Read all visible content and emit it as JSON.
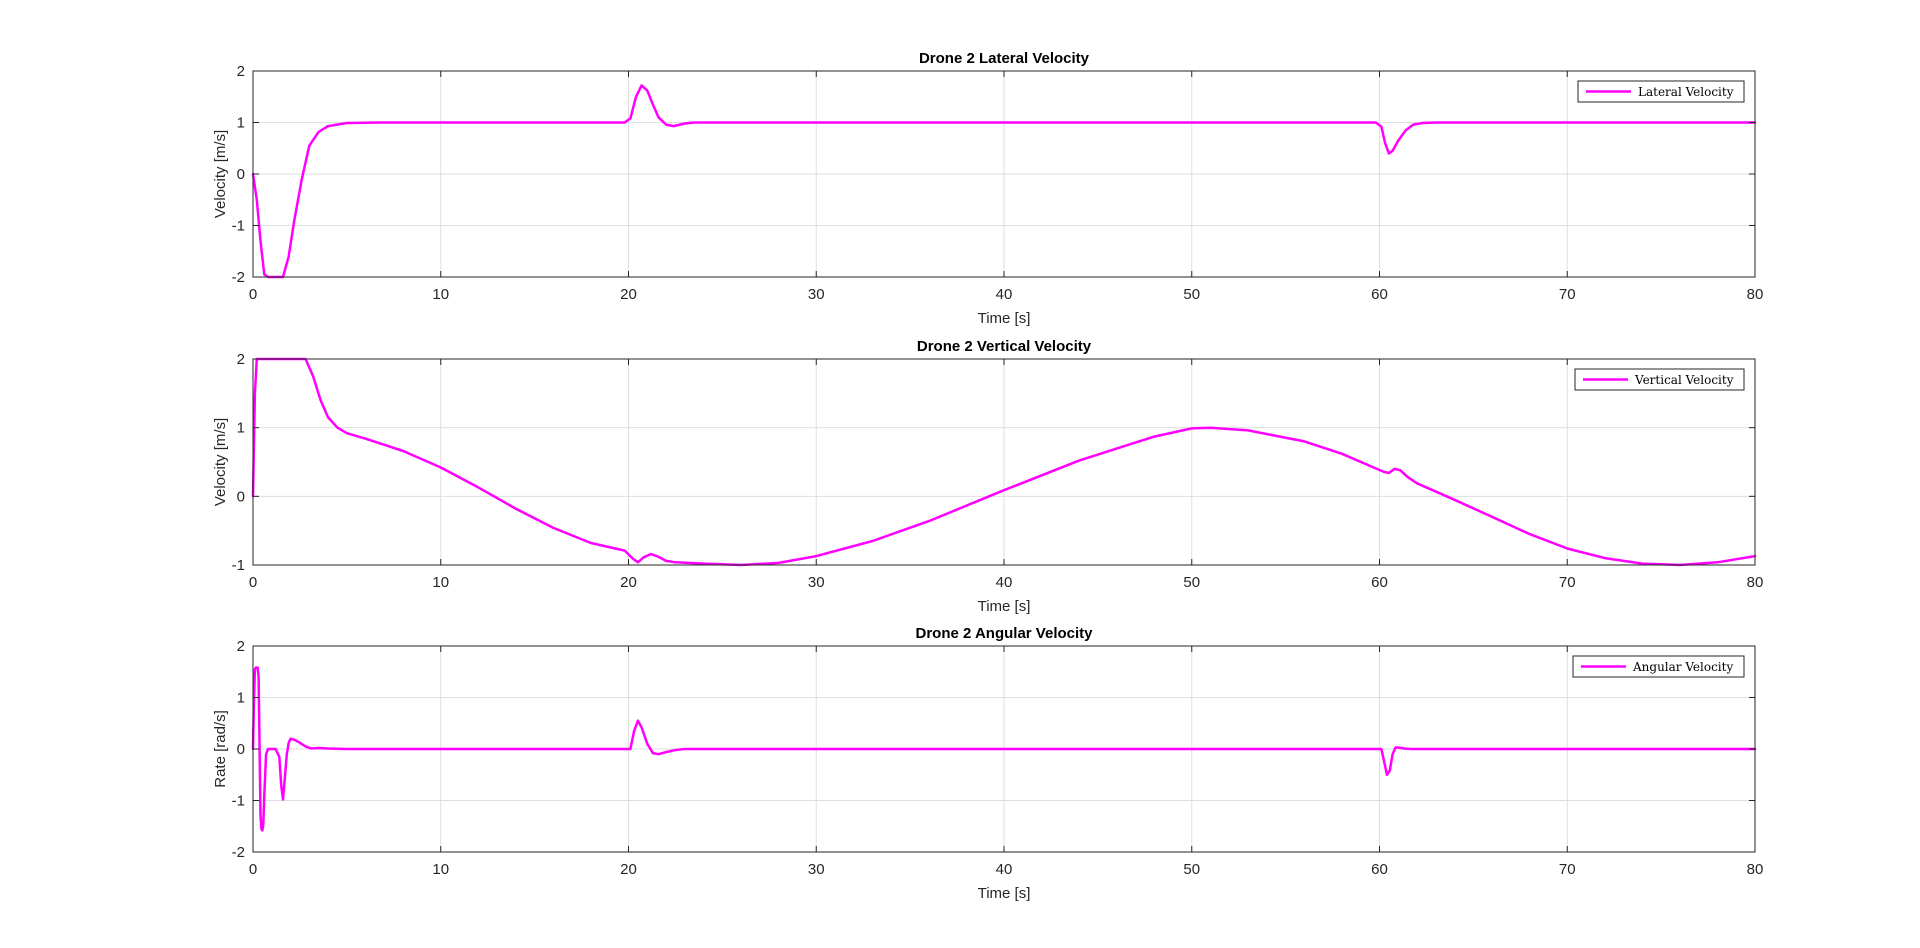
{
  "colors": {
    "series": "#ff00ff",
    "axes": "#262626",
    "grid": "#dfdfdf",
    "background": "#ffffff"
  },
  "chart_data": [
    {
      "type": "line",
      "title": "Drone 2 Lateral Velocity",
      "xlabel": "Time [s]",
      "ylabel": "Velocity [m/s]",
      "xlim": [
        0,
        80
      ],
      "ylim": [
        -2,
        2
      ],
      "xticks": [
        0,
        10,
        20,
        30,
        40,
        50,
        60,
        70,
        80
      ],
      "yticks": [
        -2,
        -1,
        0,
        1,
        2
      ],
      "grid": true,
      "legend_position": "top-right",
      "series": [
        {
          "name": "Lateral Velocity",
          "color": "#ff00ff",
          "x": [
            0,
            0.2,
            0.4,
            0.6,
            0.8,
            1.0,
            1.3,
            1.6,
            1.9,
            2.2,
            2.6,
            3.0,
            3.5,
            4.0,
            5.0,
            7.0,
            10,
            15,
            19.8,
            20.1,
            20.4,
            20.7,
            21.0,
            21.3,
            21.6,
            22.0,
            22.4,
            23.0,
            23.5,
            24.0,
            30,
            40,
            50,
            59.8,
            60.1,
            60.3,
            60.5,
            60.7,
            61.0,
            61.4,
            61.8,
            62.3,
            63.0,
            64.0,
            70,
            80
          ],
          "y": [
            0,
            -0.5,
            -1.3,
            -1.95,
            -2,
            -2,
            -2,
            -2,
            -1.6,
            -0.9,
            -0.1,
            0.55,
            0.82,
            0.93,
            0.99,
            1.0,
            1.0,
            1.0,
            1.0,
            1.08,
            1.5,
            1.72,
            1.62,
            1.35,
            1.1,
            0.96,
            0.93,
            0.98,
            1.0,
            1.0,
            1.0,
            1.0,
            1.0,
            1.0,
            0.92,
            0.6,
            0.4,
            0.45,
            0.65,
            0.85,
            0.96,
            0.99,
            1.0,
            1.0,
            1.0,
            1.0
          ]
        }
      ]
    },
    {
      "type": "line",
      "title": "Drone 2 Vertical Velocity",
      "xlabel": "Time [s]",
      "ylabel": "Velocity [m/s]",
      "xlim": [
        0,
        80
      ],
      "ylim": [
        -1,
        2
      ],
      "xticks": [
        0,
        10,
        20,
        30,
        40,
        50,
        60,
        70,
        80
      ],
      "yticks": [
        -1,
        0,
        1,
        2
      ],
      "grid": true,
      "legend_position": "top-right",
      "series": [
        {
          "name": "Vertical Velocity",
          "color": "#ff00ff",
          "x": [
            0,
            0.1,
            0.2,
            0.3,
            1.0,
            2.0,
            2.8,
            3.2,
            3.6,
            4.0,
            4.5,
            5.0,
            6.0,
            8.0,
            10,
            12,
            14,
            16,
            18,
            19.8,
            20.2,
            20.5,
            20.8,
            21.2,
            21.6,
            22.0,
            22.5,
            24,
            26,
            28,
            30,
            33,
            36,
            40,
            44,
            48,
            50,
            51,
            53,
            56,
            58,
            60.2,
            60.5,
            60.8,
            61.1,
            61.5,
            62.0,
            64,
            66,
            68,
            70,
            72,
            74,
            76,
            78,
            80
          ],
          "y": [
            0,
            1.5,
            2.0,
            2.0,
            2.0,
            2.0,
            2.0,
            1.75,
            1.4,
            1.15,
            1.0,
            0.92,
            0.84,
            0.66,
            0.42,
            0.13,
            -0.18,
            -0.46,
            -0.68,
            -0.79,
            -0.9,
            -0.96,
            -0.89,
            -0.84,
            -0.88,
            -0.94,
            -0.96,
            -0.98,
            -1.0,
            -0.97,
            -0.87,
            -0.65,
            -0.36,
            0.09,
            0.52,
            0.87,
            0.99,
            1.0,
            0.96,
            0.8,
            0.62,
            0.36,
            0.34,
            0.4,
            0.38,
            0.28,
            0.19,
            -0.05,
            -0.3,
            -0.55,
            -0.76,
            -0.9,
            -0.98,
            -1.0,
            -0.96,
            -0.87
          ]
        }
      ]
    },
    {
      "type": "line",
      "title": "Drone 2 Angular Velocity",
      "xlabel": "Time [s]",
      "ylabel": "Rate [rad/s]",
      "xlim": [
        0,
        80
      ],
      "ylim": [
        -2,
        2
      ],
      "xticks": [
        0,
        10,
        20,
        30,
        40,
        50,
        60,
        70,
        80
      ],
      "yticks": [
        -2,
        -1,
        0,
        1,
        2
      ],
      "grid": true,
      "legend_position": "top-right",
      "series": [
        {
          "name": "Angular Velocity",
          "color": "#ff00ff",
          "x": [
            0,
            0.05,
            0.1,
            0.15,
            0.25,
            0.3,
            0.35,
            0.4,
            0.45,
            0.5,
            0.55,
            0.6,
            0.7,
            0.8,
            1.0,
            1.2,
            1.4,
            1.5,
            1.6,
            1.7,
            1.8,
            1.9,
            2.0,
            2.2,
            2.5,
            2.8,
            3.1,
            3.5,
            4.0,
            5.0,
            10,
            15,
            20.1,
            20.3,
            20.5,
            20.7,
            21.0,
            21.3,
            21.6,
            22.0,
            22.5,
            23.0,
            24,
            30,
            40,
            50,
            60.1,
            60.25,
            60.4,
            60.55,
            60.7,
            60.85,
            61.0,
            61.3,
            61.7,
            62.5,
            70,
            80
          ],
          "y": [
            0,
            0.9,
            1.55,
            1.58,
            1.58,
            1.4,
            0,
            -1.3,
            -1.55,
            -1.58,
            -1.45,
            -0.9,
            -0.1,
            0,
            0,
            0,
            -0.15,
            -0.7,
            -0.98,
            -0.55,
            -0.1,
            0.12,
            0.2,
            0.18,
            0.12,
            0.05,
            0.01,
            0.02,
            0.01,
            0,
            0,
            0,
            0,
            0.35,
            0.55,
            0.42,
            0.1,
            -0.08,
            -0.1,
            -0.06,
            -0.02,
            0,
            0,
            0,
            0,
            0,
            0,
            -0.25,
            -0.5,
            -0.42,
            -0.1,
            0.03,
            0.03,
            0.01,
            0,
            0,
            0,
            0
          ]
        }
      ]
    }
  ]
}
